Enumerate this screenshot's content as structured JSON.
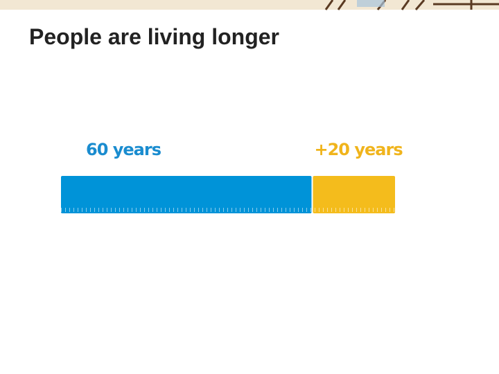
{
  "chart_data": {
    "type": "bar",
    "orientation": "horizontal",
    "stacked": true,
    "title": "People are living longer",
    "series": [
      {
        "color": "#0093d8",
        "label_color": "#1a8ccf",
        "values": [
          60
        ],
        "value_labels": [
          "60 years"
        ]
      },
      {
        "color": "#f4bc1c",
        "label_color": "#f0b41c",
        "values": [
          20
        ],
        "value_labels": [
          "+20 years"
        ]
      }
    ],
    "xlim": [
      0,
      80
    ]
  }
}
